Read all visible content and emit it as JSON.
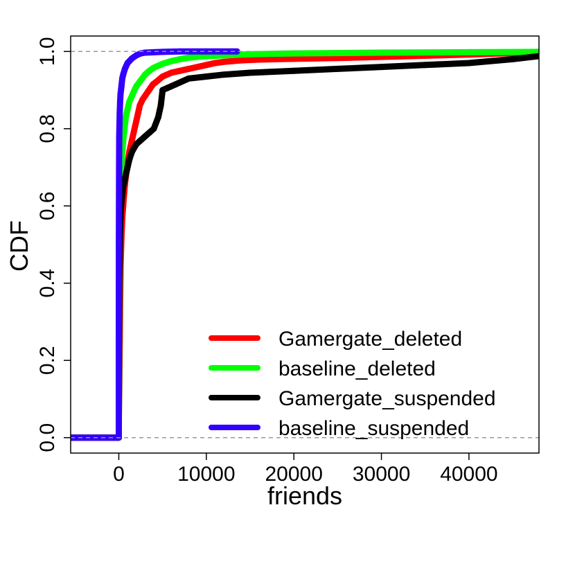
{
  "chart_data": {
    "type": "line",
    "title": "",
    "xlabel": "friends",
    "ylabel": "CDF",
    "xlim": [
      -5500,
      48000
    ],
    "ylim": [
      -0.04,
      1.04
    ],
    "x_ticks": [
      0,
      10000,
      20000,
      30000,
      40000
    ],
    "y_ticks": [
      0.0,
      0.2,
      0.4,
      0.6,
      0.8,
      1.0
    ],
    "reference_lines_y": [
      0,
      1
    ],
    "grid": false,
    "legend_position": "bottom-right",
    "series": [
      {
        "name": "Gamergate_deleted",
        "color": "#ff0000",
        "x": [
          -5500,
          0,
          0,
          50,
          100,
          150,
          200,
          300,
          400,
          500,
          600,
          700,
          800,
          900,
          1000,
          1200,
          1500,
          1800,
          2000,
          2200,
          2400,
          2700,
          3000,
          3300,
          3600,
          3900,
          4200,
          5000,
          6000,
          7000,
          8000,
          9000,
          10000,
          11000,
          12000,
          13000,
          14000,
          16000,
          18000,
          20000,
          25000,
          30000,
          35000,
          40000,
          45000,
          48000
        ],
        "y": [
          0.0,
          0.0,
          0.05,
          0.12,
          0.25,
          0.36,
          0.44,
          0.52,
          0.57,
          0.6,
          0.63,
          0.655,
          0.675,
          0.695,
          0.71,
          0.74,
          0.77,
          0.8,
          0.82,
          0.84,
          0.86,
          0.875,
          0.885,
          0.895,
          0.905,
          0.915,
          0.92,
          0.935,
          0.945,
          0.95,
          0.955,
          0.96,
          0.965,
          0.97,
          0.973,
          0.975,
          0.977,
          0.979,
          0.98,
          0.981,
          0.983,
          0.986,
          0.989,
          0.992,
          0.996,
          0.998
        ]
      },
      {
        "name": "baseline_deleted",
        "color": "#00ff00",
        "x": [
          -5500,
          0,
          0,
          50,
          100,
          200,
          300,
          400,
          500,
          600,
          700,
          800,
          1000,
          1200,
          1500,
          1800,
          2000,
          2500,
          3000,
          3500,
          4000,
          5000,
          6000,
          7000,
          8000,
          10000,
          12000,
          15000,
          20000,
          30000,
          40000,
          48000
        ],
        "y": [
          0.0,
          0.0,
          0.02,
          0.3,
          0.5,
          0.62,
          0.7,
          0.74,
          0.77,
          0.79,
          0.81,
          0.83,
          0.85,
          0.87,
          0.885,
          0.9,
          0.91,
          0.925,
          0.94,
          0.95,
          0.958,
          0.968,
          0.975,
          0.98,
          0.984,
          0.988,
          0.99,
          0.993,
          0.995,
          0.997,
          0.998,
          0.999
        ]
      },
      {
        "name": "Gamergate_suspended",
        "color": "#000000",
        "x": [
          -5500,
          0,
          0,
          20,
          50,
          100,
          150,
          200,
          300,
          400,
          500,
          600,
          800,
          1000,
          1200,
          1500,
          2000,
          2500,
          3000,
          3500,
          4000,
          4500,
          4800,
          5000,
          5500,
          6000,
          7000,
          8000,
          10000,
          12000,
          15000,
          20000,
          25000,
          30000,
          35000,
          40000,
          45000,
          48000
        ],
        "y": [
          0.0,
          0.0,
          0.08,
          0.2,
          0.4,
          0.5,
          0.55,
          0.58,
          0.61,
          0.63,
          0.65,
          0.66,
          0.68,
          0.7,
          0.72,
          0.74,
          0.76,
          0.77,
          0.78,
          0.79,
          0.8,
          0.83,
          0.86,
          0.9,
          0.905,
          0.91,
          0.92,
          0.93,
          0.935,
          0.94,
          0.945,
          0.95,
          0.955,
          0.96,
          0.965,
          0.97,
          0.98,
          0.988
        ]
      },
      {
        "name": "baseline_suspended",
        "color": "#3300ff",
        "x": [
          -5500,
          -2000,
          0,
          0,
          10,
          30,
          50,
          100,
          150,
          200,
          300,
          400,
          500,
          700,
          1000,
          1500,
          2000,
          2500,
          3000,
          4000,
          5000,
          7000,
          10000,
          13500
        ],
        "y": [
          0.0,
          0.0,
          0.0,
          0.25,
          0.5,
          0.7,
          0.78,
          0.84,
          0.87,
          0.89,
          0.91,
          0.93,
          0.94,
          0.955,
          0.97,
          0.982,
          0.99,
          0.995,
          0.997,
          0.998,
          0.999,
          1.0,
          1.0,
          1.0
        ]
      }
    ]
  }
}
